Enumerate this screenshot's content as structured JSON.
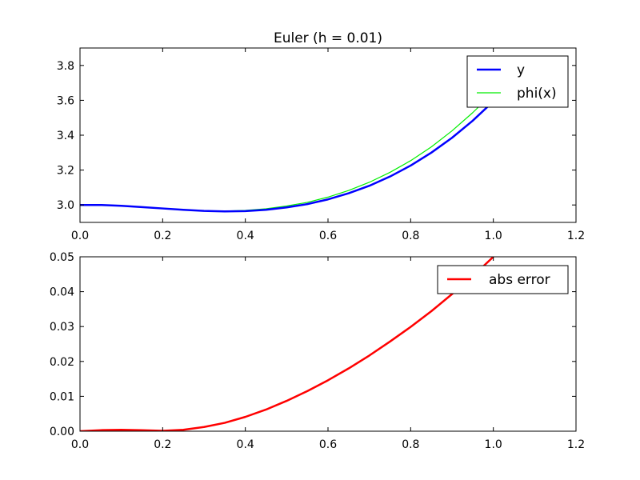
{
  "chart_data": [
    {
      "type": "line",
      "title": "Euler (h = 0.01)",
      "xlabel": "",
      "ylabel": "",
      "xlim": [
        0.0,
        1.2
      ],
      "ylim": [
        2.9,
        3.9
      ],
      "xticks": [
        "0.0",
        "0.2",
        "0.4",
        "0.6",
        "0.8",
        "1.0",
        "1.2"
      ],
      "yticks": [
        "3.0",
        "3.2",
        "3.4",
        "3.6",
        "3.8"
      ],
      "legend_position": "top-right",
      "grid": false,
      "series": [
        {
          "name": "y",
          "color": "#0000ff",
          "x": [
            0.0,
            0.05,
            0.1,
            0.15,
            0.2,
            0.25,
            0.3,
            0.35,
            0.4,
            0.45,
            0.5,
            0.55,
            0.6,
            0.65,
            0.7,
            0.75,
            0.8,
            0.85,
            0.9,
            0.95,
            1.0
          ],
          "y": [
            3.0,
            3.0,
            2.995,
            2.988,
            2.98,
            2.972,
            2.966,
            2.963,
            2.965,
            2.972,
            2.986,
            3.005,
            3.032,
            3.067,
            3.11,
            3.163,
            3.226,
            3.3,
            3.385,
            3.483,
            3.594
          ]
        },
        {
          "name": "phi(x)",
          "color": "#00ee00",
          "x": [
            0.0,
            0.05,
            0.1,
            0.15,
            0.2,
            0.25,
            0.3,
            0.35,
            0.4,
            0.45,
            0.5,
            0.55,
            0.6,
            0.65,
            0.7,
            0.75,
            0.8,
            0.85,
            0.9,
            0.95,
            1.0
          ],
          "y": [
            3.0,
            3.0,
            2.995,
            2.988,
            2.98,
            2.972,
            2.967,
            2.965,
            2.969,
            2.978,
            2.994,
            3.015,
            3.045,
            3.083,
            3.13,
            3.187,
            3.254,
            3.333,
            3.425,
            3.529,
            3.644
          ]
        }
      ]
    },
    {
      "type": "line",
      "title": "",
      "xlabel": "",
      "ylabel": "",
      "xlim": [
        0.0,
        1.2
      ],
      "ylim": [
        0.0,
        0.05
      ],
      "xticks": [
        "0.0",
        "0.2",
        "0.4",
        "0.6",
        "0.8",
        "1.0",
        "1.2"
      ],
      "yticks": [
        "0.00",
        "0.01",
        "0.02",
        "0.03",
        "0.04",
        "0.05"
      ],
      "legend_position": "top-right",
      "grid": false,
      "series": [
        {
          "name": "abs error",
          "color": "#ff0000",
          "x": [
            0.0,
            0.05,
            0.1,
            0.15,
            0.2,
            0.25,
            0.3,
            0.35,
            0.4,
            0.45,
            0.5,
            0.55,
            0.6,
            0.65,
            0.7,
            0.75,
            0.8,
            0.85,
            0.9,
            0.95,
            1.0
          ],
          "y": [
            0.0,
            0.0003,
            0.0004,
            0.0003,
            0.0001,
            0.0004,
            0.0012,
            0.0024,
            0.0041,
            0.0062,
            0.0087,
            0.0115,
            0.0146,
            0.018,
            0.0217,
            0.0257,
            0.0299,
            0.0344,
            0.0393,
            0.0444,
            0.05
          ]
        }
      ]
    }
  ]
}
